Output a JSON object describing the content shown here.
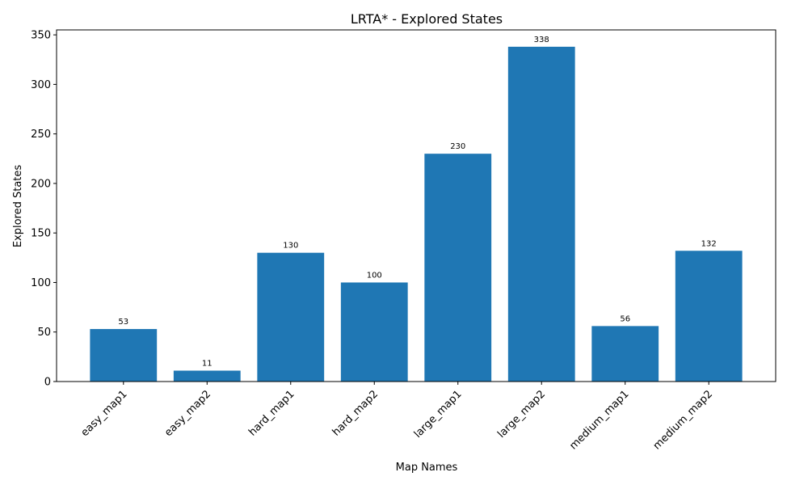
{
  "chart_data": {
    "type": "bar",
    "title": "LRTA* - Explored States",
    "xlabel": "Map Names",
    "ylabel": "Explored States",
    "categories": [
      "easy_map1",
      "easy_map2",
      "hard_map1",
      "hard_map2",
      "large_map1",
      "large_map2",
      "medium_map1",
      "medium_map2"
    ],
    "values": [
      53,
      11,
      130,
      100,
      230,
      338,
      56,
      132
    ],
    "data_labels": [
      "53",
      "11",
      "130",
      "100",
      "230",
      "338",
      "56",
      "132"
    ],
    "ylim": [
      0,
      355
    ],
    "yticks": [
      0,
      50,
      100,
      150,
      200,
      250,
      300,
      350
    ],
    "grid": false,
    "bar_color": "#1f77b4",
    "xtick_rotation_deg": 45
  }
}
